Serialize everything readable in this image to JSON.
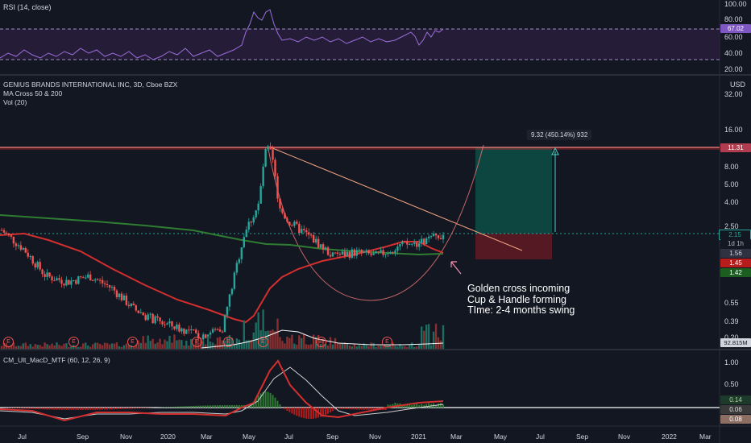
{
  "rsi_panel": {
    "title": "RSI (14, close)",
    "axis_labels": [
      "100.00",
      "80.00",
      "60.00",
      "40.00",
      "20.00"
    ],
    "current": "67.02",
    "upper_band": 70,
    "lower_band": 30,
    "line_color": "#9c6ede",
    "band_fill": "#2a1f3d"
  },
  "main_panel": {
    "title": "GENIUS BRANDS INTERNATIONAL INC, 3D, Cboe BZX",
    "indicator1": "MA Cross 50 & 200",
    "indicator2": "Vol (20)",
    "currency": "USD",
    "axis_labels": [
      "32.00",
      "16.00",
      "8.00",
      "5.00",
      "4.00",
      "2.50",
      "0.55",
      "0.39",
      "0.20"
    ],
    "price_tags": [
      {
        "text": "11.31",
        "color": "#b23c4f",
        "text_color": "#ffffff"
      },
      {
        "text": "2.15",
        "color": "#131722",
        "text_color": "#26a69a"
      },
      {
        "text": "1d 1h",
        "color": "#131722",
        "text_color": "#b2b5be"
      },
      {
        "text": "1.56",
        "color": "#2e3241",
        "text_color": "#d1d4dc"
      },
      {
        "text": "1.45",
        "color": "#b71c1c",
        "text_color": "#ffffff"
      },
      {
        "text": "1.42",
        "color": "#1b5e20",
        "text_color": "#ffffff"
      },
      {
        "text": "92.815M",
        "color": "#d1d4dc",
        "text_color": "#131722"
      }
    ],
    "measure_label": "9.32 (450.14%) 932",
    "annotation": [
      "Golden cross incoming",
      "Cup & Handle forming",
      "TIme: 2-4 months swing"
    ],
    "earnings_marker": "E",
    "colors": {
      "up": "#26a69a",
      "down": "#ef5350",
      "ma50": "#d32f2f",
      "ma200": "#2e7d32",
      "resistance": "#e57373",
      "trend": "#f4a582",
      "target_zone": "#0d4d45",
      "stop_zone": "#5c1a24"
    }
  },
  "macd_panel": {
    "title": "CM_Ult_MacD_MTF (60, 12, 26, 9)",
    "axis_labels": [
      "1.00",
      "0.50",
      "0.14",
      "0.06",
      "0.08"
    ]
  },
  "time_axis": [
    "Jul",
    "Sep",
    "Nov",
    "2020",
    "Mar",
    "May",
    "Jul",
    "Sep",
    "Nov",
    "2021",
    "Mar",
    "May",
    "Jul",
    "Sep",
    "Nov",
    "2022",
    "Mar"
  ],
  "chart_data": {
    "type": "candlestick",
    "title": "GENIUS BRANDS INTERNATIONAL INC, 3D, Cboe BZX",
    "y_scale": "log",
    "ylim": [
      0.2,
      45
    ],
    "x_period": [
      "2019-May",
      "2022-Mar"
    ],
    "price_path": [
      {
        "x": "2019-Jun",
        "y": 2.3
      },
      {
        "x": "2019-Jul",
        "y": 1.6
      },
      {
        "x": "2019-Aug",
        "y": 0.95
      },
      {
        "x": "2019-Sep",
        "y": 0.85
      },
      {
        "x": "2019-Oct",
        "y": 0.95
      },
      {
        "x": "2019-Nov",
        "y": 0.75
      },
      {
        "x": "2019-Dec",
        "y": 0.5
      },
      {
        "x": "2020-Jan",
        "y": 0.4
      },
      {
        "x": "2020-Feb",
        "y": 0.35
      },
      {
        "x": "2020-Mar",
        "y": 0.3
      },
      {
        "x": "2020-Apr",
        "y": 0.35
      },
      {
        "x": "2020-May",
        "y": 2.2
      },
      {
        "x": "2020-Jun",
        "y": 5.0
      },
      {
        "x": "2020-Jul",
        "y": 2.7
      },
      {
        "x": "2020-Aug",
        "y": 2.0
      },
      {
        "x": "2020-Sep",
        "y": 1.4
      },
      {
        "x": "2020-Oct",
        "y": 1.5
      },
      {
        "x": "2020-Nov",
        "y": 1.4
      },
      {
        "x": "2020-Dec",
        "y": 1.7
      },
      {
        "x": "2021-Jan",
        "y": 1.8
      },
      {
        "x": "2021-Feb",
        "y": 2.15
      }
    ],
    "ma50_path": [
      {
        "x": "2019-Jun",
        "y": 2.1
      },
      {
        "x": "2019-Oct",
        "y": 1.1
      },
      {
        "x": "2020-Jan",
        "y": 0.55
      },
      {
        "x": "2020-Apr",
        "y": 0.3
      },
      {
        "x": "2020-Jun",
        "y": 1.2
      },
      {
        "x": "2020-Sep",
        "y": 1.7
      },
      {
        "x": "2020-Dec",
        "y": 2.0
      },
      {
        "x": "2021-Feb",
        "y": 1.45
      }
    ],
    "ma200_path": [
      {
        "x": "2019-May",
        "y": 2.8
      },
      {
        "x": "2019-Dec",
        "y": 2.5
      },
      {
        "x": "2020-Jun",
        "y": 1.9
      },
      {
        "x": "2020-Oct",
        "y": 1.6
      },
      {
        "x": "2021-Feb",
        "y": 1.42
      }
    ],
    "resistance_level": 11.31,
    "last_price": 2.15,
    "target_move": "9.32 (450.14%)"
  }
}
